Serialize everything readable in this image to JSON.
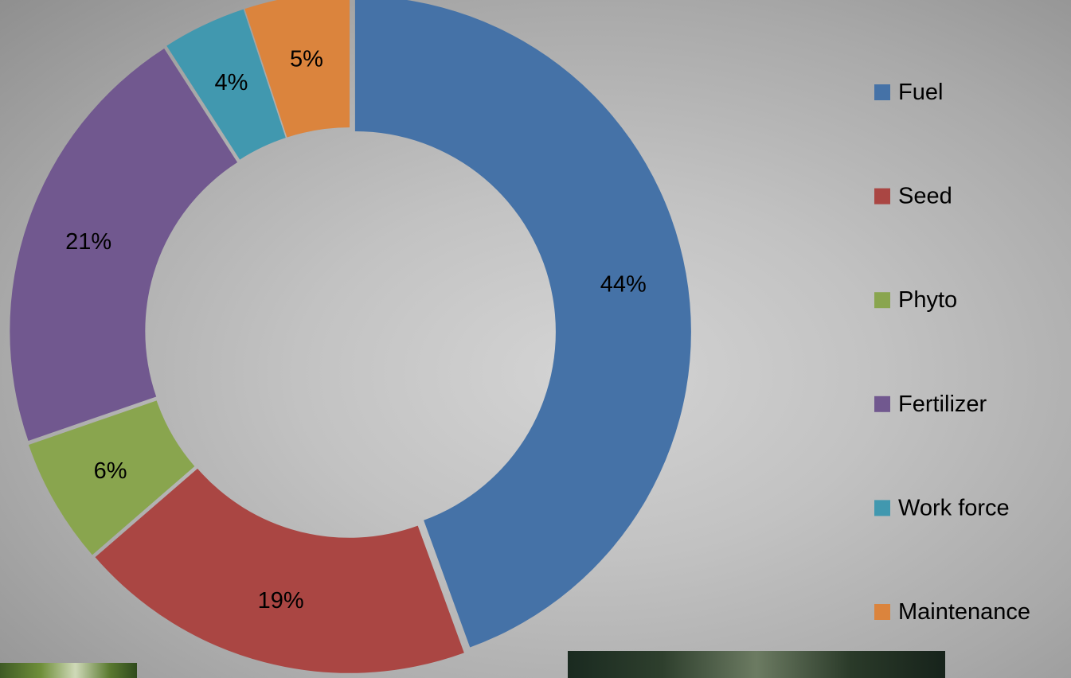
{
  "chart_data": {
    "type": "pie",
    "style": "exploded-donut",
    "title": "",
    "legend_position": "right",
    "series": [
      {
        "name": "Fuel",
        "value": 44,
        "label": "44%",
        "color": "#4572A7"
      },
      {
        "name": "Seed",
        "value": 19,
        "label": "19%",
        "color": "#AA4643"
      },
      {
        "name": "Phyto",
        "value": 6,
        "label": "6%",
        "color": "#89A54E"
      },
      {
        "name": "Fertilizer",
        "value": 21,
        "label": "21%",
        "color": "#71588F"
      },
      {
        "name": "Work force",
        "value": 4,
        "label": "4%",
        "color": "#4198AF"
      },
      {
        "name": "Maintenance",
        "value": 5,
        "label": "5%",
        "color": "#DB843D"
      }
    ]
  }
}
